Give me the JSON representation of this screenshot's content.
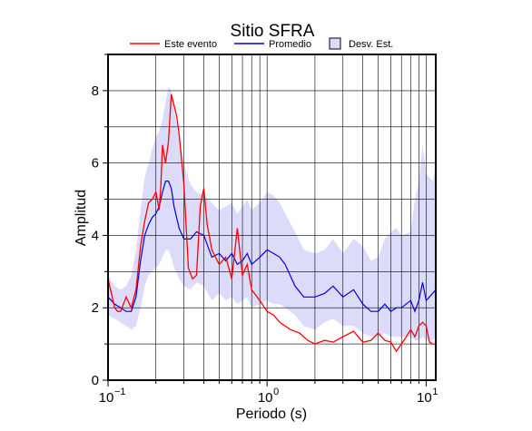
{
  "chart_data": {
    "type": "line",
    "title": "Sitio SFRA",
    "xlabel": "Periodo (s)",
    "ylabel": "Amplitud",
    "xscale": "log",
    "xlim": [
      0.1,
      11.5
    ],
    "ylim": [
      0,
      9
    ],
    "yticks": [
      0,
      2,
      4,
      6,
      8
    ],
    "xticks": [
      {
        "value": 0.1,
        "base": "10",
        "exp": "−1"
      },
      {
        "value": 1,
        "base": "10",
        "exp": "0"
      },
      {
        "value": 10,
        "base": "10",
        "exp": "1"
      }
    ],
    "grid": true,
    "legend_position": "top",
    "colors": {
      "event": "#ff0000",
      "mean": "#0000dd",
      "band_fill": "#dcdcfa",
      "band_edge": "#8888cc"
    },
    "legend": [
      {
        "label": "Este evento",
        "kind": "line",
        "color": "#ff0000"
      },
      {
        "label": "Promedio",
        "kind": "line",
        "color": "#0000dd"
      },
      {
        "label": "Desv. Est.",
        "kind": "box",
        "color": "#dcdcfa"
      }
    ],
    "series": [
      {
        "name": "Este evento",
        "x": [
          0.1,
          0.105,
          0.11,
          0.115,
          0.12,
          0.13,
          0.14,
          0.15,
          0.16,
          0.17,
          0.18,
          0.19,
          0.2,
          0.21,
          0.215,
          0.22,
          0.23,
          0.24,
          0.25,
          0.26,
          0.27,
          0.28,
          0.3,
          0.32,
          0.34,
          0.36,
          0.38,
          0.4,
          0.42,
          0.45,
          0.5,
          0.55,
          0.6,
          0.65,
          0.7,
          0.75,
          0.8,
          0.9,
          1.0,
          1.1,
          1.2,
          1.4,
          1.6,
          1.8,
          2.0,
          2.3,
          2.6,
          3.0,
          3.5,
          4.0,
          4.5,
          5.0,
          5.5,
          6.0,
          6.5,
          7.0,
          7.5,
          8.0,
          8.5,
          9.0,
          9.5,
          10.0,
          10.5,
          11.0,
          11.5
        ],
        "values": [
          2.8,
          2.4,
          2.0,
          1.9,
          1.9,
          2.3,
          2.0,
          2.5,
          3.7,
          4.4,
          4.9,
          5.0,
          5.2,
          4.7,
          5.4,
          6.5,
          6.0,
          6.6,
          7.9,
          7.6,
          7.3,
          6.8,
          5.4,
          3.1,
          2.8,
          2.9,
          4.8,
          5.3,
          4.3,
          3.6,
          3.2,
          3.4,
          2.8,
          4.2,
          2.9,
          3.2,
          2.5,
          2.2,
          1.9,
          1.8,
          1.6,
          1.4,
          1.3,
          1.1,
          1.0,
          1.1,
          1.05,
          1.2,
          1.35,
          1.05,
          1.1,
          1.3,
          1.1,
          1.05,
          0.8,
          1.0,
          1.2,
          1.4,
          1.2,
          1.5,
          1.6,
          1.5,
          1.05,
          1.0,
          1.0
        ]
      },
      {
        "name": "Promedio",
        "x": [
          0.1,
          0.11,
          0.12,
          0.13,
          0.14,
          0.15,
          0.16,
          0.17,
          0.18,
          0.19,
          0.2,
          0.21,
          0.22,
          0.23,
          0.24,
          0.25,
          0.26,
          0.28,
          0.3,
          0.33,
          0.36,
          0.4,
          0.45,
          0.5,
          0.55,
          0.6,
          0.65,
          0.7,
          0.75,
          0.8,
          0.9,
          1.0,
          1.1,
          1.2,
          1.3,
          1.5,
          1.7,
          2.0,
          2.3,
          2.6,
          3.0,
          3.5,
          4.0,
          4.5,
          5.0,
          5.5,
          6.0,
          6.5,
          7.0,
          8.0,
          8.5,
          9.0,
          9.5,
          10.0,
          11.0,
          11.5
        ],
        "values": [
          2.3,
          2.1,
          2.0,
          1.9,
          1.9,
          2.3,
          3.3,
          4.0,
          4.3,
          4.5,
          4.6,
          4.8,
          5.2,
          5.5,
          5.5,
          5.3,
          4.8,
          4.2,
          3.9,
          3.9,
          4.1,
          4.0,
          3.4,
          3.5,
          3.3,
          3.5,
          3.2,
          3.3,
          3.5,
          3.2,
          3.4,
          3.6,
          3.5,
          3.4,
          3.2,
          2.6,
          2.3,
          2.3,
          2.4,
          2.6,
          2.3,
          2.5,
          2.1,
          1.9,
          1.9,
          2.1,
          1.9,
          2.0,
          2.0,
          2.2,
          1.9,
          2.2,
          2.7,
          2.2,
          2.4,
          2.5
        ]
      }
    ],
    "band": {
      "name": "Desv. Est.",
      "x": [
        0.1,
        0.11,
        0.12,
        0.13,
        0.14,
        0.15,
        0.16,
        0.17,
        0.18,
        0.19,
        0.2,
        0.21,
        0.22,
        0.23,
        0.24,
        0.25,
        0.26,
        0.28,
        0.3,
        0.33,
        0.36,
        0.4,
        0.45,
        0.5,
        0.55,
        0.6,
        0.65,
        0.7,
        0.75,
        0.8,
        0.9,
        1.0,
        1.1,
        1.2,
        1.3,
        1.5,
        1.7,
        2.0,
        2.3,
        2.6,
        3.0,
        3.5,
        4.0,
        4.5,
        5.0,
        5.5,
        6.0,
        6.5,
        7.0,
        8.0,
        8.5,
        9.0,
        9.5,
        10.0,
        11.0,
        11.5
      ],
      "upper": [
        2.9,
        2.6,
        2.5,
        2.6,
        2.9,
        3.6,
        4.7,
        5.6,
        6.0,
        6.4,
        6.7,
        6.9,
        7.2,
        7.7,
        8.1,
        8.0,
        7.5,
        6.7,
        6.0,
        5.4,
        5.2,
        5.1,
        4.9,
        4.7,
        4.8,
        4.9,
        4.6,
        4.8,
        5.0,
        4.7,
        4.9,
        5.2,
        5.1,
        4.9,
        4.6,
        4.1,
        3.6,
        3.5,
        3.6,
        3.9,
        3.5,
        3.9,
        3.7,
        3.3,
        3.4,
        3.9,
        4.1,
        4.2,
        4.0,
        4.1,
        5.0,
        5.5,
        6.5,
        5.7,
        5.5,
        5.9
      ],
      "lower": [
        1.8,
        1.7,
        1.6,
        1.5,
        1.4,
        1.5,
        2.0,
        2.6,
        2.9,
        3.0,
        3.1,
        3.2,
        3.4,
        3.6,
        3.6,
        3.4,
        3.1,
        2.8,
        2.6,
        2.5,
        2.7,
        2.6,
        2.2,
        2.4,
        2.2,
        2.3,
        2.1,
        2.2,
        2.3,
        2.0,
        2.1,
        2.2,
        2.1,
        2.1,
        2.0,
        1.8,
        1.5,
        1.4,
        1.6,
        1.7,
        1.5,
        1.5,
        1.3,
        1.2,
        1.2,
        1.3,
        1.2,
        1.2,
        1.2,
        1.2,
        1.1,
        1.1,
        1.2,
        1.1,
        1.1,
        1.2
      ]
    }
  }
}
